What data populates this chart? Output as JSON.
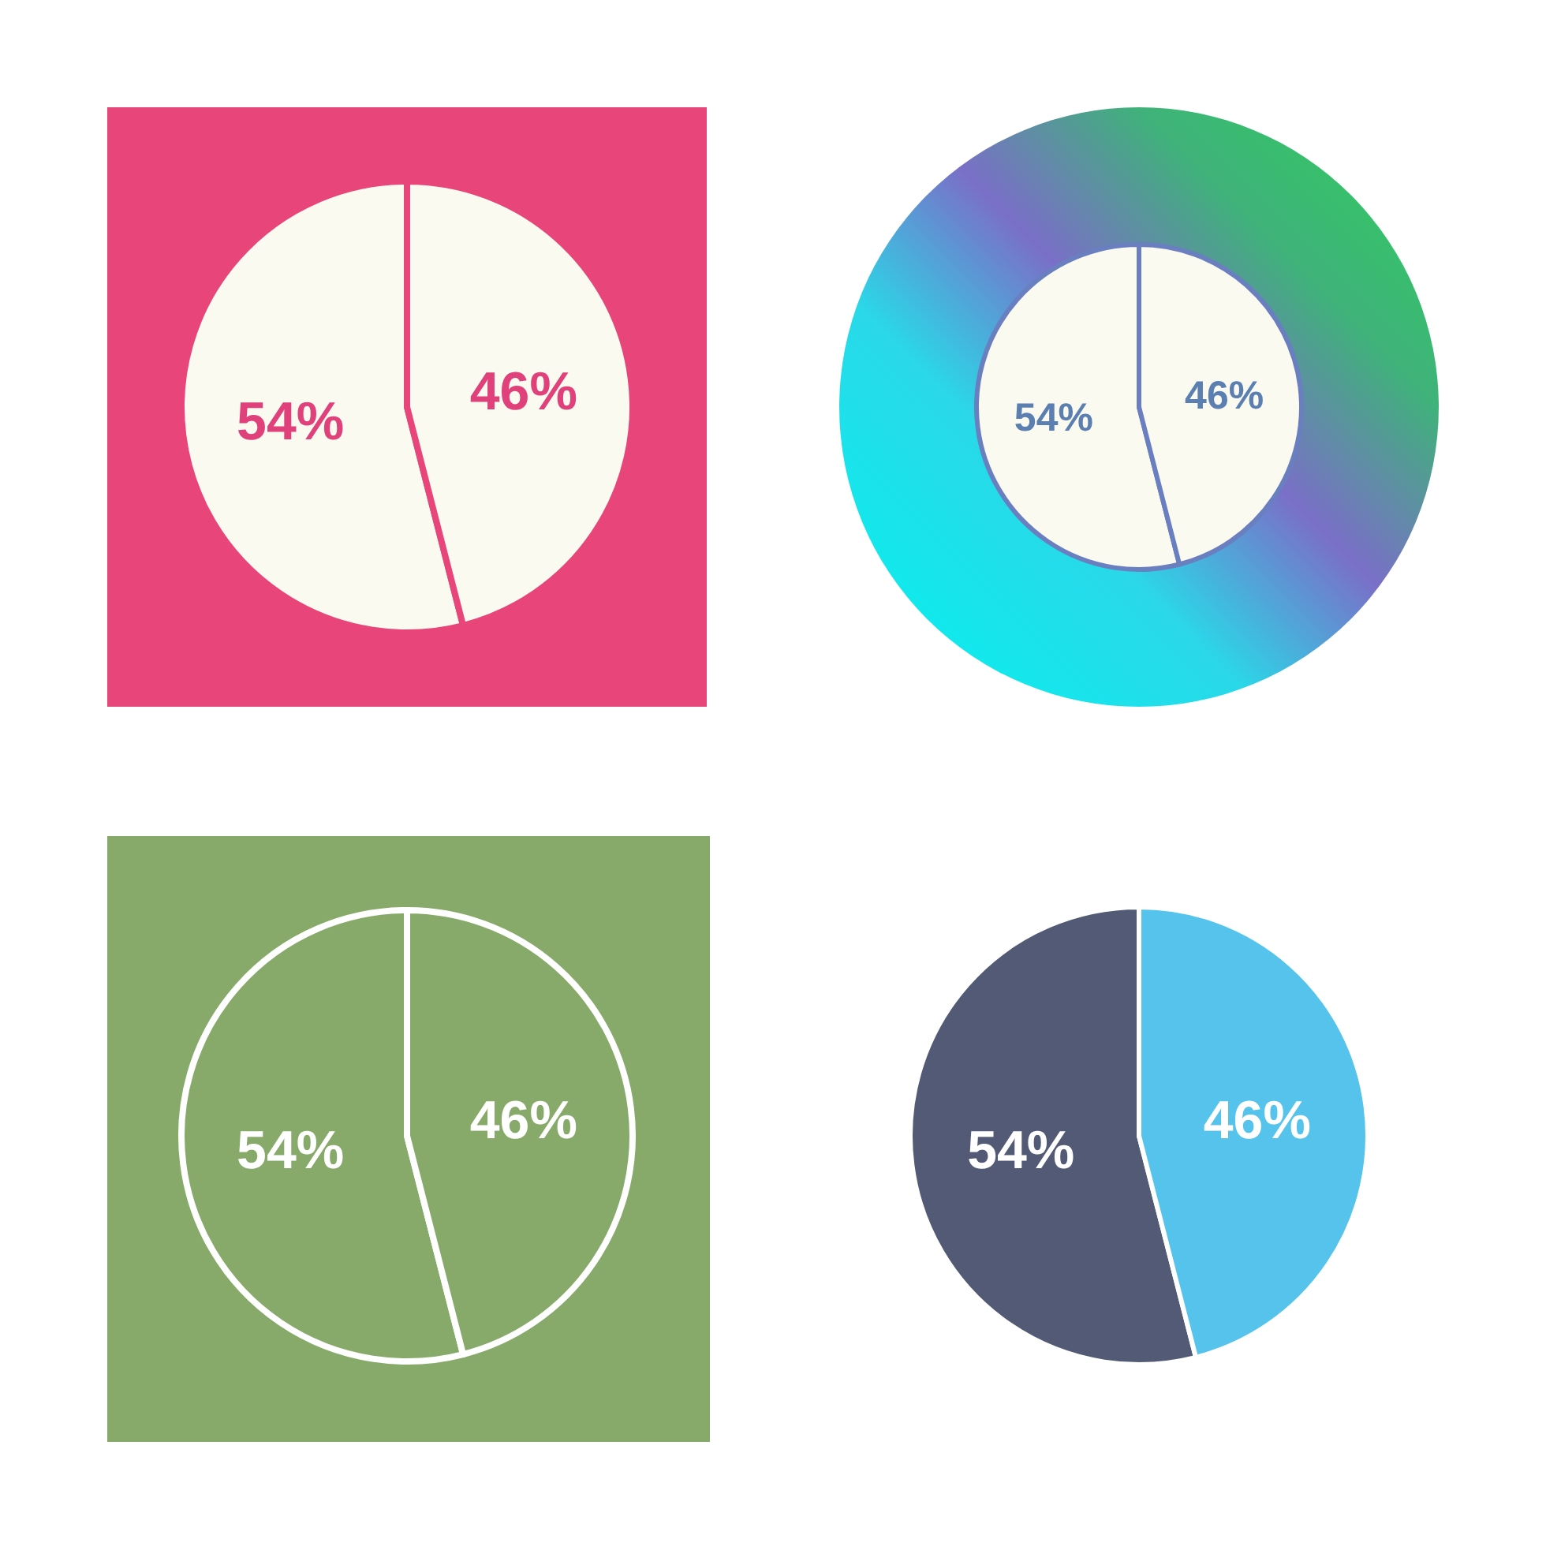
{
  "chart_data": [
    {
      "type": "pie",
      "categories": [
        null,
        null
      ],
      "values": [
        54,
        46
      ],
      "value_labels": [
        "54%",
        "46%"
      ],
      "colors": [
        "#fbfaf1",
        "#fbfaf1"
      ]
    },
    {
      "type": "pie",
      "categories": [
        null,
        null
      ],
      "values": [
        54,
        46
      ],
      "value_labels": [
        "54%",
        "46%"
      ],
      "colors": [
        "#fbfaf1",
        "#fbfaf1"
      ]
    },
    {
      "type": "pie",
      "categories": [
        null,
        null
      ],
      "values": [
        54,
        46
      ],
      "value_labels": [
        "54%",
        "46%"
      ],
      "colors": [
        "#87aa6a",
        "#87aa6a"
      ]
    },
    {
      "type": "pie",
      "categories": [
        null,
        null
      ],
      "values": [
        54,
        46
      ],
      "value_labels": [
        "54%",
        "46%"
      ],
      "colors": [
        "#525a75",
        "#55c3ec"
      ]
    }
  ]
}
